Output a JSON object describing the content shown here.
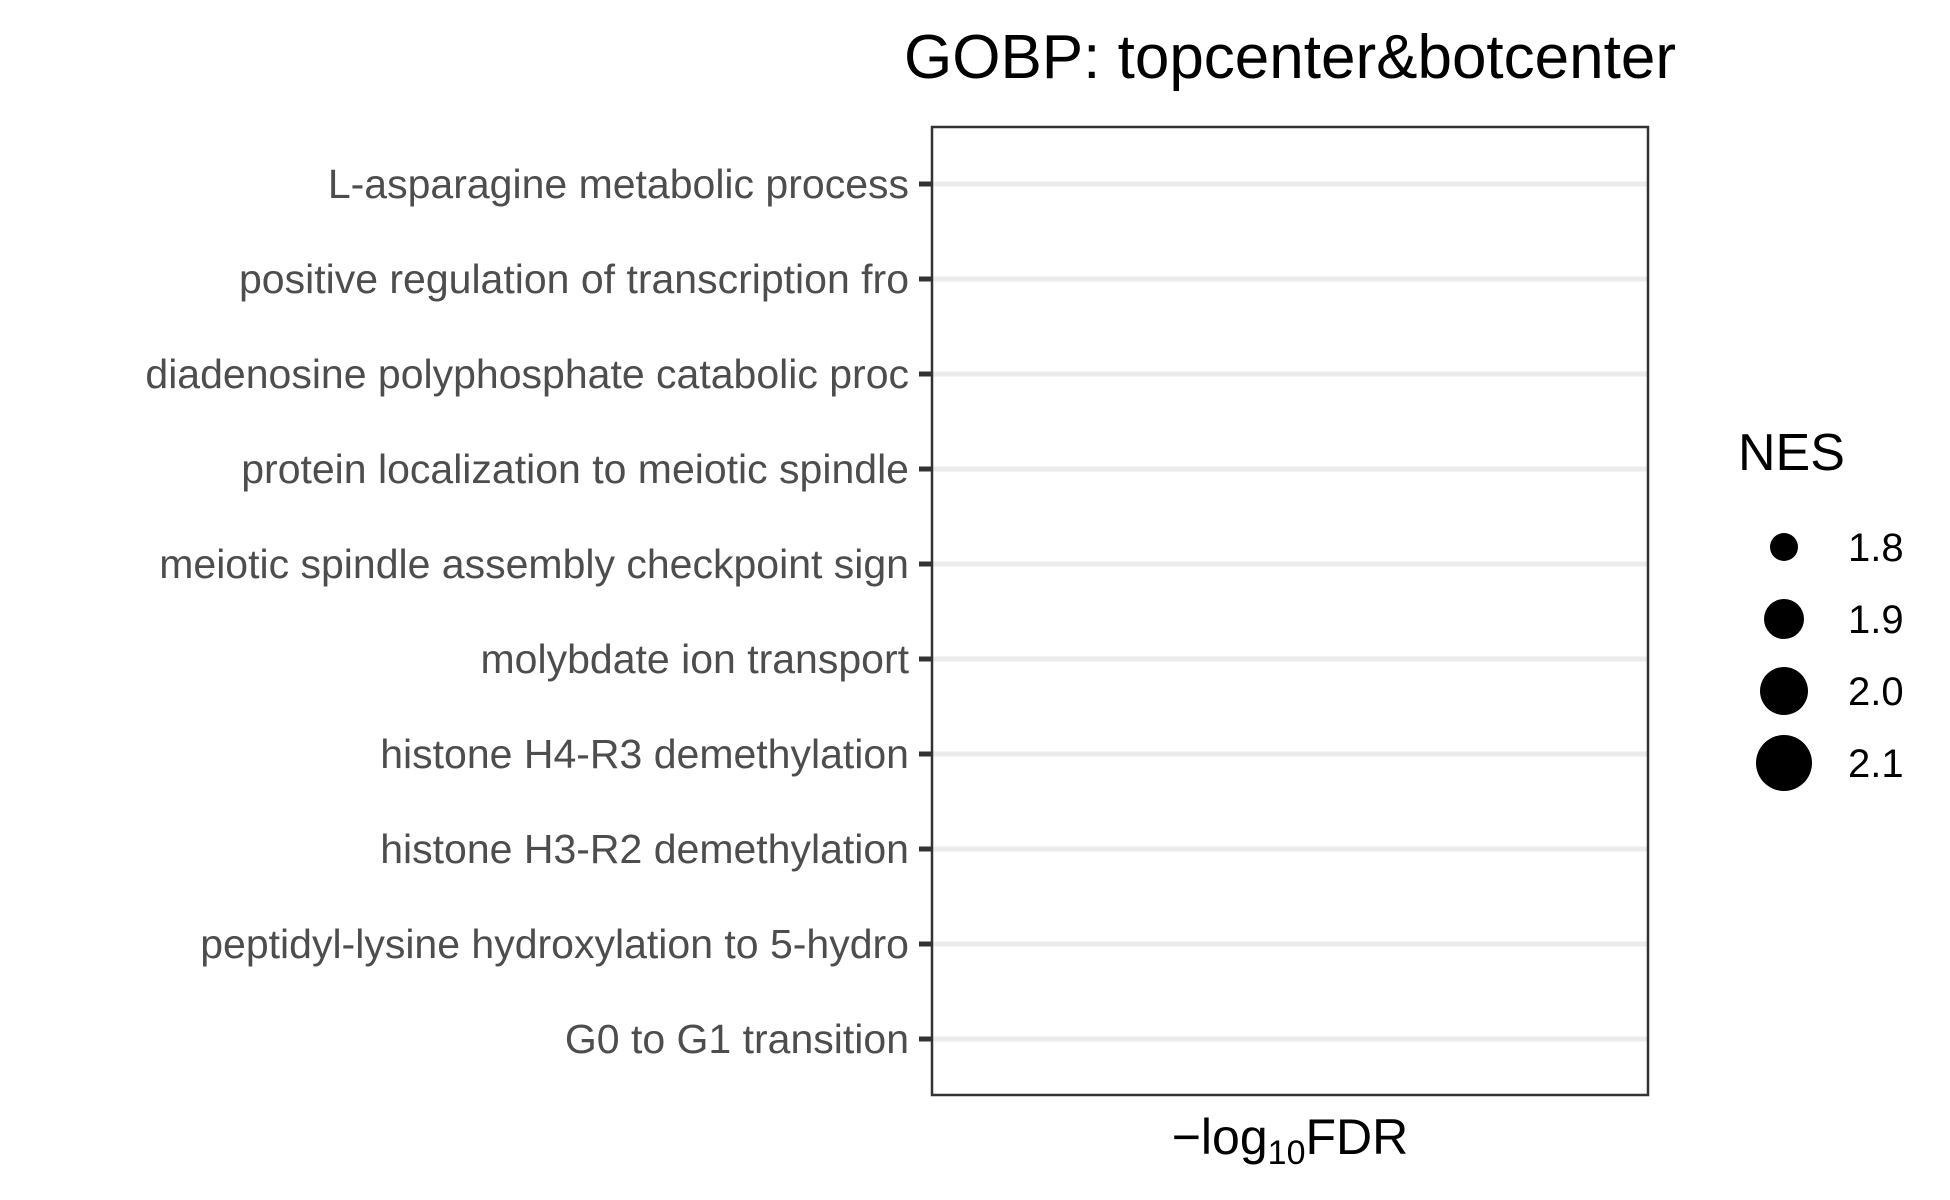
{
  "chart_data": {
    "type": "scatter",
    "title": "GOBP: topcenter&botcenter",
    "xlabel": {
      "prefix": "−log",
      "subscript": "10",
      "suffix": "FDR"
    },
    "ylabel": "",
    "categories": [
      "L-asparagine metabolic process",
      "positive regulation of transcription fro",
      "diadenosine polyphosphate catabolic proc",
      "protein localization to meiotic spindle ",
      "meiotic spindle assembly checkpoint sign",
      "molybdate ion transport",
      "histone H4-R3 demethylation",
      "histone H3-R2 demethylation",
      "peptidyl-lysine hydroxylation to 5-hydro",
      "G0 to G1 transition"
    ],
    "points": [],
    "grid": true,
    "legend": {
      "title": "NES",
      "placement": "right",
      "entries": [
        {
          "label": "1.8",
          "value": 1.8
        },
        {
          "label": "1.9",
          "value": 1.9
        },
        {
          "label": "2.0",
          "value": 2.0
        },
        {
          "label": "2.1",
          "value": 2.1
        }
      ]
    },
    "colors": {
      "point": "#000000",
      "grid": "#ebebeb",
      "axis": "#333333",
      "tick_text": "#4d4d4d"
    }
  }
}
